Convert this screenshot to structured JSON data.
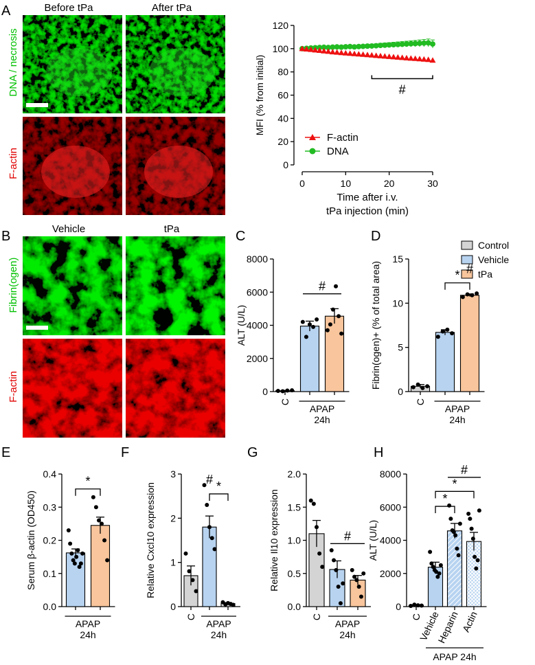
{
  "panels": {
    "A": {
      "letter": "A",
      "col_titles": [
        "Before tPa",
        "After tPa"
      ],
      "row_labels": [
        "DNA / necrosis",
        "F-actin"
      ]
    },
    "B": {
      "letter": "B",
      "col_titles": [
        "Vehicle",
        "tPa"
      ],
      "row_labels": [
        "Fibrin(ogen)",
        "F-actin"
      ]
    },
    "C": {
      "letter": "C"
    },
    "D": {
      "letter": "D"
    },
    "E": {
      "letter": "E"
    },
    "F": {
      "letter": "F"
    },
    "G": {
      "letter": "G"
    },
    "H": {
      "letter": "H"
    }
  },
  "legend": {
    "items": [
      {
        "label": "Control",
        "color": "#d4d4d4"
      },
      {
        "label": "Vehicle",
        "color": "#b7d3f0"
      },
      {
        "label": "tPa",
        "color": "#f8c59c"
      }
    ]
  },
  "colors": {
    "green_channel": "#00c000",
    "red_channel": "#e00000",
    "factin_series": "#ee1111",
    "dna_series": "#22bb22",
    "control": "#d4d4d4",
    "vehicle": "#b7d3f0",
    "tpa": "#f8c59c"
  },
  "chart_data": [
    {
      "panel": "A",
      "type": "line",
      "xlabel": "Time after i.v.\ntPa injection (min)",
      "ylabel": "MFI (% from initial)",
      "xlim": [
        0,
        30
      ],
      "ylim": [
        0,
        120
      ],
      "xticks": [
        0,
        10,
        20,
        30
      ],
      "yticks": [
        0,
        20,
        40,
        60,
        80,
        100,
        120
      ],
      "series": [
        {
          "name": "F-actin",
          "marker": "triangle",
          "color": "#ee1111",
          "x": [
            0,
            1,
            2,
            3,
            4,
            5,
            6,
            7,
            8,
            9,
            10,
            11,
            12,
            13,
            14,
            15,
            16,
            17,
            18,
            19,
            20,
            21,
            22,
            23,
            24,
            25,
            26,
            27,
            28,
            29,
            30
          ],
          "y": [
            100,
            99.6,
            99.2,
            98.8,
            98.4,
            98.0,
            97.6,
            97.2,
            96.9,
            96.5,
            96.2,
            95.9,
            95.6,
            95.3,
            95.0,
            94.7,
            94.4,
            94.1,
            93.8,
            93.5,
            93.2,
            92.9,
            92.6,
            92.3,
            92.0,
            91.7,
            91.5,
            91.2,
            90.9,
            90.6,
            90.0
          ]
        },
        {
          "name": "DNA",
          "marker": "circle",
          "color": "#22bb22",
          "x": [
            0,
            1,
            2,
            3,
            4,
            5,
            6,
            7,
            8,
            9,
            10,
            11,
            12,
            13,
            14,
            15,
            16,
            17,
            18,
            19,
            20,
            21,
            22,
            23,
            24,
            25,
            26,
            27,
            28,
            29,
            30
          ],
          "y": [
            100,
            100.3,
            100.6,
            100.8,
            101.0,
            101.2,
            101.0,
            101.3,
            101.5,
            101.3,
            101.6,
            101.8,
            101.5,
            101.8,
            102.0,
            102.2,
            102.3,
            102.5,
            102.8,
            103.0,
            103.2,
            103.4,
            103.6,
            103.8,
            104.0,
            104.2,
            104.4,
            104.6,
            104.8,
            105.0,
            104.0
          ],
          "err": [
            0,
            0.4,
            0.5,
            0.6,
            0.7,
            0.8,
            0.8,
            0.9,
            1.0,
            1.0,
            1.1,
            1.2,
            1.2,
            1.3,
            1.4,
            1.5,
            1.6,
            1.7,
            1.8,
            1.9,
            2.0,
            2.1,
            2.2,
            2.3,
            2.4,
            2.5,
            2.7,
            2.9,
            3.1,
            3.3,
            3.5
          ]
        }
      ],
      "significance": {
        "symbol": "#",
        "x_range": [
          16,
          30
        ],
        "y": 86
      }
    },
    {
      "panel": "C",
      "type": "bar",
      "ylabel": "ALT (U/L)",
      "ylim": [
        0,
        8000
      ],
      "yticks": [
        0,
        2000,
        4000,
        6000,
        8000
      ],
      "categories": [
        "C",
        "Vehicle",
        "tPa"
      ],
      "xlabels": [
        "C",
        "",
        ""
      ],
      "group_label": [
        "APAP",
        "24h"
      ],
      "values": [
        50,
        3950,
        4550
      ],
      "errors": [
        20,
        300,
        450
      ],
      "points": [
        [
          40,
          20,
          60,
          80
        ],
        [
          4200,
          3300,
          4050,
          3900,
          4350
        ],
        [
          3700,
          4050,
          4950,
          6350,
          4550,
          3500
        ]
      ],
      "significance": [
        {
          "symbol": "#",
          "from": 1,
          "to": 2,
          "y": 5900
        }
      ]
    },
    {
      "panel": "D",
      "type": "bar",
      "ylabel": "Fibrin(ogen)+ (% of total area)",
      "ylim": [
        0,
        15
      ],
      "yticks": [
        0,
        5,
        10,
        15
      ],
      "categories": [
        "C",
        "Vehicle",
        "tPa"
      ],
      "xlabels": [
        "C",
        "",
        ""
      ],
      "group_label": [
        "APAP",
        "24h"
      ],
      "values": [
        0.6,
        6.7,
        10.9
      ],
      "errors": [
        0.2,
        0.3,
        0.15
      ],
      "points": [
        [
          0.5,
          0.8,
          0.4,
          0.6
        ],
        [
          6.2,
          6.8,
          7.0,
          6.6
        ],
        [
          10.7,
          11.0,
          10.9,
          11.1
        ]
      ],
      "significance": [
        {
          "symbol": "*",
          "from": 1,
          "to": 2,
          "y": 12.3
        },
        {
          "symbol": "#",
          "at": 2,
          "y": 13.4
        }
      ]
    },
    {
      "panel": "E",
      "type": "bar",
      "ylabel": "Serum β-actin (OD450)",
      "ylim": [
        0,
        0.4
      ],
      "yticks": [
        0.0,
        0.1,
        0.2,
        0.3,
        0.4
      ],
      "categories": [
        "Vehicle",
        "tPa"
      ],
      "xlabels": [
        "",
        ""
      ],
      "group_label": [
        "APAP",
        "24h"
      ],
      "values": [
        0.162,
        0.245
      ],
      "errors": [
        0.012,
        0.025
      ],
      "points": [
        [
          0.23,
          0.19,
          0.16,
          0.14,
          0.13,
          0.15,
          0.17,
          0.12,
          0.13,
          0.16
        ],
        [
          0.33,
          0.3,
          0.26,
          0.25,
          0.2,
          0.14
        ]
      ],
      "significance": [
        {
          "symbol": "*",
          "from": 0,
          "to": 1,
          "y": 0.355
        }
      ]
    },
    {
      "panel": "F",
      "type": "bar",
      "ylabel": "Relative Cxcl10 expression",
      "ylim": [
        0,
        3
      ],
      "yticks": [
        0,
        1,
        2,
        3
      ],
      "categories": [
        "C",
        "Vehicle",
        "tPa"
      ],
      "xlabels": [
        "C",
        "",
        ""
      ],
      "group_label": [
        "APAP",
        "24h"
      ],
      "values": [
        0.7,
        1.8,
        0.07
      ],
      "errors": [
        0.22,
        0.25,
        0.02
      ],
      "points": [
        [
          1.2,
          0.8,
          0.6,
          0.35
        ],
        [
          2.75,
          2.3,
          1.8,
          1.55,
          1.3
        ],
        [
          0.1,
          0.05,
          0.08,
          0.06,
          0.04
        ]
      ],
      "significance": [
        {
          "symbol": "*",
          "from": 1,
          "to": 2,
          "y": 2.55
        },
        {
          "symbol": "#",
          "at": 1,
          "y": 2.78
        }
      ]
    },
    {
      "panel": "G",
      "type": "bar",
      "ylabel": "Relative Il10 expression",
      "ylim": [
        0,
        2
      ],
      "yticks": [
        0.0,
        0.5,
        1.0,
        1.5,
        2.0
      ],
      "categories": [
        "C",
        "Vehicle",
        "tPa"
      ],
      "xlabels": [
        "C",
        "",
        ""
      ],
      "group_label": [
        "APAP",
        "24h"
      ],
      "values": [
        1.1,
        0.56,
        0.4
      ],
      "errors": [
        0.2,
        0.13,
        0.07
      ],
      "points": [
        [
          1.6,
          1.55,
          1.2,
          0.8,
          0.6
        ],
        [
          0.85,
          0.7,
          0.55,
          0.3,
          0.05,
          0.35
        ],
        [
          0.55,
          0.45,
          0.4,
          0.3,
          0.15,
          0.5
        ]
      ],
      "significance": [
        {
          "symbol": "#",
          "from": 1,
          "to": 2,
          "y": 0.95
        }
      ]
    },
    {
      "panel": "H",
      "type": "bar",
      "ylabel": "ALT (U/L)",
      "ylim": [
        0,
        8000
      ],
      "yticks": [
        0,
        2000,
        4000,
        6000,
        8000
      ],
      "categories": [
        "C",
        "Vehicle",
        "Heparin",
        "Actin"
      ],
      "xlabels": [
        "C",
        "Vehicle",
        "Heparin",
        "Actin"
      ],
      "group_label": [
        "APAP 24h"
      ],
      "values": [
        80,
        2380,
        4570,
        3930
      ],
      "errors": [
        30,
        300,
        450,
        550
      ],
      "points": [
        [
          40,
          120,
          80,
          60
        ],
        [
          3300,
          2600,
          2400,
          2200,
          2100,
          1800,
          2000,
          2500
        ],
        [
          6100,
          5300,
          4600,
          4500,
          4300,
          3500,
          3100,
          5000
        ],
        [
          5600,
          5300,
          4700,
          4100,
          3000,
          2300,
          2800,
          5800
        ]
      ],
      "significance": [
        {
          "symbol": "*",
          "from": 1,
          "to": 2,
          "y": 6050
        },
        {
          "symbol": "*",
          "from": 1,
          "to": 3,
          "y": 6950
        },
        {
          "symbol": "#",
          "from": 2,
          "to": 3,
          "y": 7800
        }
      ]
    }
  ]
}
